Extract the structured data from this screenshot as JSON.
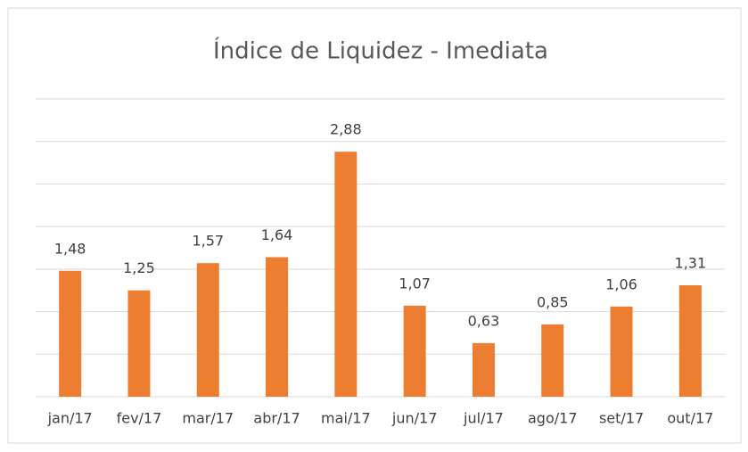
{
  "chart_data": {
    "type": "bar",
    "title": "Índice de Liquidez - Imediata",
    "categories": [
      "jan/17",
      "fev/17",
      "mar/17",
      "abr/17",
      "mai/17",
      "jun/17",
      "jul/17",
      "ago/17",
      "set/17",
      "out/17"
    ],
    "values": [
      1.48,
      1.25,
      1.57,
      1.64,
      2.88,
      1.07,
      0.63,
      0.85,
      1.06,
      1.31
    ],
    "value_labels": [
      "1,48",
      "1,25",
      "1,57",
      "1,64",
      "2,88",
      "1,07",
      "0,63",
      "0,85",
      "1,06",
      "1,31"
    ],
    "color": "#ed7d31",
    "ylim": [
      0,
      3.5
    ],
    "yticks": [
      0,
      0.5,
      1,
      1.5,
      2,
      2.5,
      3,
      3.5
    ],
    "grid": true
  }
}
